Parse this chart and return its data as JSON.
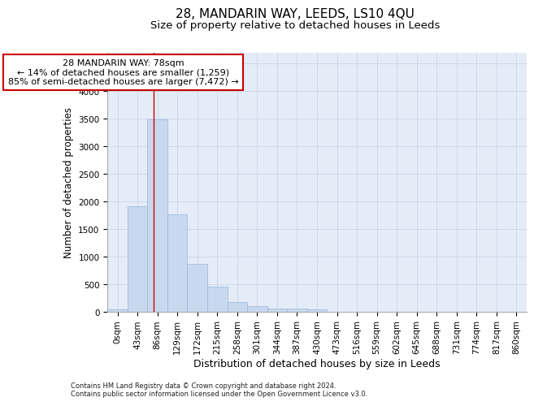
{
  "title": "28, MANDARIN WAY, LEEDS, LS10 4QU",
  "subtitle": "Size of property relative to detached houses in Leeds",
  "xlabel": "Distribution of detached houses by size in Leeds",
  "ylabel": "Number of detached properties",
  "bar_color": "#c8d9ef",
  "bar_edge_color": "#9ab5d8",
  "categories": [
    "0sqm",
    "43sqm",
    "86sqm",
    "129sqm",
    "172sqm",
    "215sqm",
    "258sqm",
    "301sqm",
    "344sqm",
    "387sqm",
    "430sqm",
    "473sqm",
    "516sqm",
    "559sqm",
    "602sqm",
    "645sqm",
    "688sqm",
    "731sqm",
    "774sqm",
    "817sqm",
    "860sqm"
  ],
  "values": [
    40,
    1920,
    3490,
    1760,
    870,
    460,
    175,
    100,
    65,
    55,
    45,
    0,
    0,
    0,
    0,
    0,
    0,
    0,
    0,
    0,
    0
  ],
  "ylim": [
    0,
    4700
  ],
  "yticks": [
    0,
    500,
    1000,
    1500,
    2000,
    2500,
    3000,
    3500,
    4000,
    4500
  ],
  "vline_x": 1.82,
  "vline_color": "#cc0000",
  "annotation_text": "28 MANDARIN WAY: 78sqm\n← 14% of detached houses are smaller (1,259)\n85% of semi-detached houses are larger (7,472) →",
  "annotation_box_facecolor": "#ffffff",
  "annotation_box_edgecolor": "#cc0000",
  "footer1": "Contains HM Land Registry data © Crown copyright and database right 2024.",
  "footer2": "Contains public sector information licensed under the Open Government Licence v3.0.",
  "grid_color": "#cdd8ec",
  "background_color": "#e4ecf7",
  "title_fontsize": 11,
  "subtitle_fontsize": 9.5,
  "tick_fontsize": 7.5,
  "ylabel_fontsize": 8.5,
  "xlabel_fontsize": 9
}
